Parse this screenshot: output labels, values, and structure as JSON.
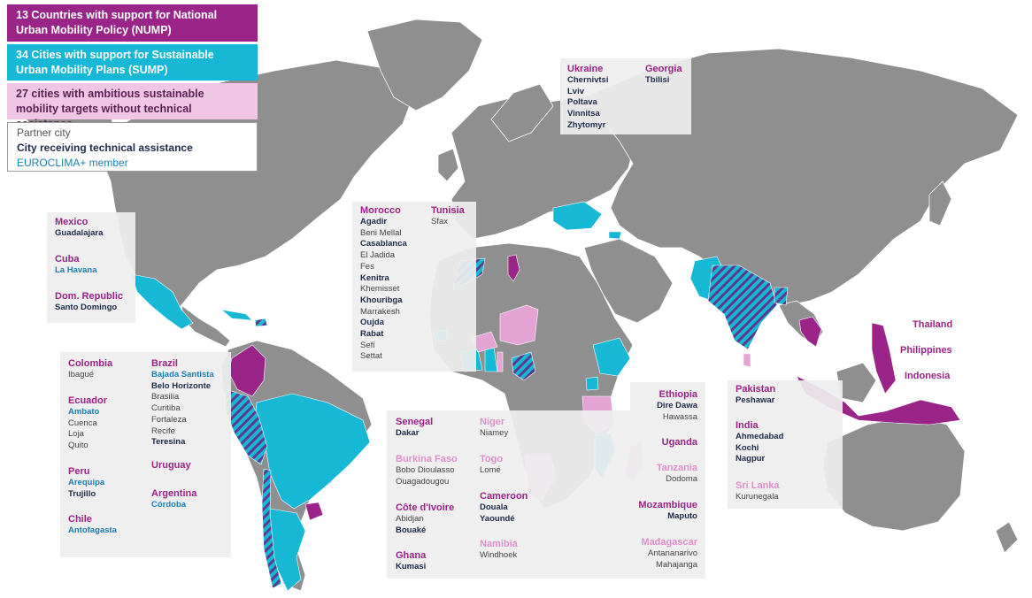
{
  "legend": {
    "nump": "13 Countries with  support  for National Urban Mobility Policy (NUMP)",
    "sump": "34 Cities with  support for Sustainable Urban Mobility Plans (SUMP)",
    "ambitious": "27 cities with ambitious sustainable mobility targets without technical assistance",
    "partner": "Partner city",
    "assisted": "City receiving technical assistance",
    "euroclima": "EUROCLIMA+ member"
  },
  "colors": {
    "land": "#8f8f8f",
    "nump": "#9b2488",
    "sump": "#17b8d6",
    "ambitious": "#e3a4d5",
    "hatch_a": "#17b8d6",
    "hatch_b": "#5b3a8f",
    "panel": "#eeeeee"
  },
  "regions": {
    "ukraine": {
      "country": "Ukraine",
      "cities": [
        "Chernivtsi",
        "Lviv",
        "Poltava",
        "Vinnitsa",
        "Zhytomyr"
      ]
    },
    "georgia": {
      "country": "Georgia",
      "cities": [
        "Tbilisi"
      ]
    },
    "mexico": {
      "country": "Mexico",
      "cities": [
        "Guadalajara"
      ]
    },
    "cuba": {
      "country": "Cuba",
      "cities": [
        "La Havana"
      ]
    },
    "domrep": {
      "country": "Dom. Republic",
      "cities": [
        "Santo Domingo"
      ]
    },
    "morocco": {
      "country": "Morocco",
      "cities": [
        "Agadir",
        "Beni Mellal",
        "Casablanca",
        "El Jadida",
        "Fes",
        "Kenitra",
        "Khemisset",
        "Khouribga",
        "Marrakesh",
        "Oujda",
        "Rabat",
        "Sefi",
        "Settat"
      ]
    },
    "tunisia": {
      "country": "Tunisia",
      "cities": [
        "Sfax"
      ]
    },
    "colombia": {
      "country": "Colombia",
      "cities": [
        "Ibagué"
      ]
    },
    "ecuador": {
      "country": "Ecuador",
      "cities": [
        "Ambato",
        "Cuenca",
        "Loja",
        "Quito"
      ]
    },
    "peru": {
      "country": "Peru",
      "cities": [
        "Arequipa",
        "Trujillo"
      ]
    },
    "chile": {
      "country": "Chile",
      "cities": [
        "Antofagasta"
      ]
    },
    "brazil": {
      "country": "Brazil",
      "cities": [
        "Bajada Santista",
        "Belo Horizonte",
        "Brasilia",
        "Curitiba",
        "Fortaleza",
        "Recife",
        "Teresina"
      ]
    },
    "uruguay": {
      "country": "Uruguay",
      "cities": []
    },
    "argentina": {
      "country": "Argentina",
      "cities": [
        "Córdoba"
      ]
    },
    "senegal": {
      "country": "Senegal",
      "cities": [
        "Dakar"
      ]
    },
    "burkina": {
      "country": "Burkina  Faso",
      "cities": [
        "Bobo Dioulasso",
        "Ouagadougou"
      ]
    },
    "cotedivoire": {
      "country": "Côte d'Ivoire",
      "cities": [
        "Abidjan",
        "Bouaké"
      ]
    },
    "ghana": {
      "country": "Ghana",
      "cities": [
        "Kumasi"
      ]
    },
    "niger": {
      "country": "Niger",
      "cities": [
        "Niamey"
      ]
    },
    "togo": {
      "country": "Togo",
      "cities": [
        "Lomé"
      ]
    },
    "cameroon": {
      "country": "Cameroon",
      "cities": [
        "Douala",
        "Yaoundé"
      ]
    },
    "namibia": {
      "country": "Namibia",
      "cities": [
        "Windhoek"
      ]
    },
    "ethiopia": {
      "country": "Ethiopia",
      "cities": [
        "Dire Dawa",
        "Hawassa"
      ]
    },
    "uganda": {
      "country": "Uganda",
      "cities": []
    },
    "tanzania": {
      "country": "Tanzania",
      "cities": [
        "Dodoma"
      ]
    },
    "mozambique": {
      "country": "Mozambique",
      "cities": [
        "Maputo"
      ]
    },
    "madagascar": {
      "country": "Madagascar",
      "cities": [
        "Antananarivo",
        "Mahajanga"
      ]
    },
    "pakistan": {
      "country": "Pakistan",
      "cities": [
        "Peshawar"
      ]
    },
    "india": {
      "country": "India",
      "cities": [
        "Ahmedabad",
        "Kochi",
        "Nagpur"
      ]
    },
    "srilanka": {
      "country": "Sri Lanka",
      "cities": [
        "Kurunegala"
      ]
    },
    "thailand": {
      "country": "Thailand"
    },
    "philippines": {
      "country": "Philippines"
    },
    "indonesia": {
      "country": "Indonesia"
    }
  }
}
